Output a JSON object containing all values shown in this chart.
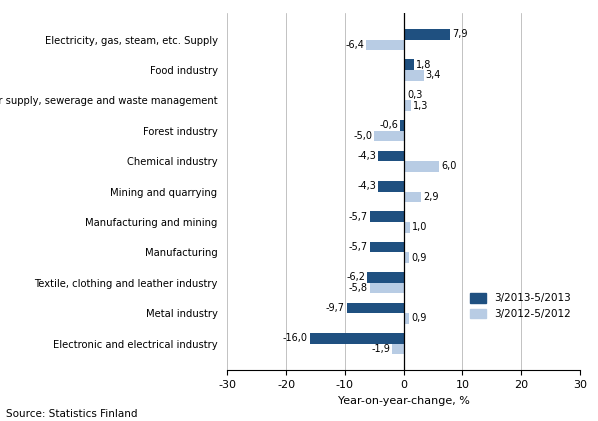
{
  "categories": [
    "Electronic and electrical industry",
    "Metal industry",
    "Textile, clothing and leather industry",
    "Manufacturing",
    "Manufacturing and mining",
    "Mining and quarrying",
    "Chemical industry",
    "Forest industry",
    "Water supply, sewerage and waste management",
    "Food industry",
    "Electricity, gas, steam, etc. Supply"
  ],
  "series_2013": [
    -16.0,
    -9.7,
    -6.2,
    -5.7,
    -5.7,
    -4.3,
    -4.3,
    -0.6,
    0.3,
    1.8,
    7.9
  ],
  "series_2012": [
    -1.9,
    0.9,
    -5.8,
    0.9,
    1.0,
    2.9,
    6.0,
    -5.0,
    1.3,
    3.4,
    -6.4
  ],
  "labels_2013": [
    "-16,0",
    "-9,7",
    "-6,2",
    "-5,7",
    "-5,7",
    "-4,3",
    "-4,3",
    "-0,6",
    "0,3",
    "1,8",
    "7,9"
  ],
  "labels_2012": [
    "-1,9",
    "0,9",
    "-5,8",
    "0,9",
    "1,0",
    "2,9",
    "6,0",
    "-5,0",
    "1,3",
    "3,4",
    "-6,4"
  ],
  "color_2013": "#1F5080",
  "color_2012": "#B8CCE4",
  "xlabel": "Year-on-year-change, %",
  "source": "Source: Statistics Finland",
  "legend_2013": "3/2013-5/2013",
  "legend_2012": "3/2012-5/2012",
  "xlim": [
    -30,
    30
  ],
  "xticks": [
    -30,
    -20,
    -10,
    0,
    10,
    20,
    30
  ]
}
